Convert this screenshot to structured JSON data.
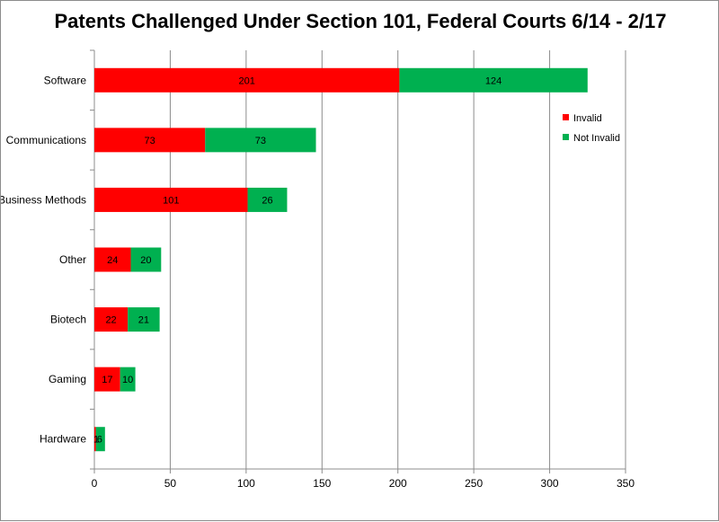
{
  "chart_data": {
    "type": "bar",
    "orientation": "horizontal",
    "stacked": true,
    "title": "Patents Challenged Under Section 101, Federal Courts 6/14 - 2/17",
    "xlabel": "",
    "ylabel": "",
    "xlim": [
      0,
      350
    ],
    "xticks": [
      0,
      50,
      100,
      150,
      200,
      250,
      300,
      350
    ],
    "grid": "vertical",
    "legend_position": "right",
    "categories": [
      "Software",
      "Communications",
      "Business Methods",
      "Other",
      "Biotech",
      "Gaming",
      "Hardware"
    ],
    "series": [
      {
        "name": "Invalid",
        "color": "#ff0000",
        "values": [
          201,
          73,
          101,
          24,
          22,
          17,
          1
        ]
      },
      {
        "name": "Not Invalid",
        "color": "#00b050",
        "values": [
          124,
          73,
          26,
          20,
          21,
          10,
          6
        ]
      }
    ],
    "data_labels": [
      [
        "201",
        "73",
        "101",
        "24",
        "22",
        "17",
        "1"
      ],
      [
        "124",
        "73",
        "26",
        "20",
        "21",
        "10",
        "6"
      ]
    ]
  }
}
